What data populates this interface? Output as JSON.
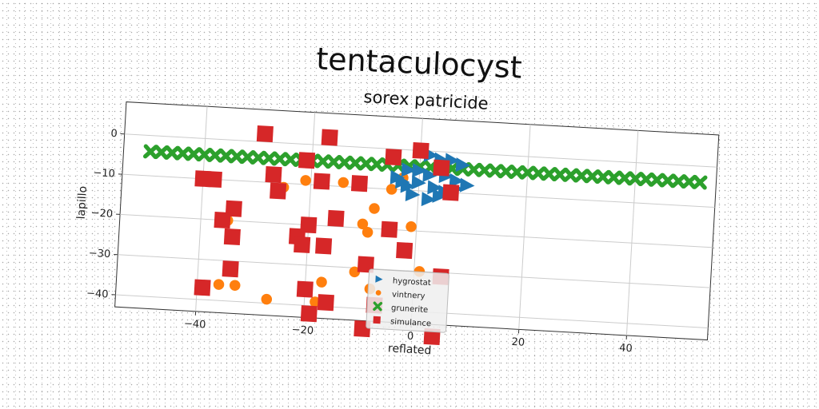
{
  "chart_data": {
    "type": "scatter",
    "title": "tentaculocyst",
    "subtitle": "sorex patricide",
    "xlabel": "reflated",
    "ylabel": "lapillo",
    "xlim": [
      -55,
      55
    ],
    "ylim": [
      -43,
      8
    ],
    "xticks": [
      -40,
      -20,
      0,
      20,
      40
    ],
    "yticks": [
      0,
      -10,
      -20,
      -30,
      -40
    ],
    "grid": true,
    "legend_position": "lower-center",
    "series": [
      {
        "name": "hygrostat",
        "marker": "triangle-right",
        "color": "#1f77b4",
        "points": [
          [
            2,
            -1
          ],
          [
            4,
            -2
          ],
          [
            6,
            -2
          ],
          [
            8,
            -3
          ],
          [
            -2,
            -5
          ],
          [
            0,
            -5
          ],
          [
            2,
            -6
          ],
          [
            5,
            -6
          ],
          [
            7,
            -7
          ],
          [
            9,
            -8
          ],
          [
            -4,
            -7
          ],
          [
            -2,
            -9
          ],
          [
            0,
            -8
          ],
          [
            3,
            -9
          ],
          [
            5,
            -10
          ],
          [
            7,
            -9
          ],
          [
            -1,
            -11
          ],
          [
            2,
            -12
          ],
          [
            4,
            -11
          ],
          [
            -3,
            -8
          ]
        ]
      },
      {
        "name": "vintnery",
        "marker": "circle",
        "color": "#ff7f0e",
        "points": [
          [
            -21,
            -9
          ],
          [
            -14,
            -9
          ],
          [
            -3,
            -7
          ],
          [
            -5,
            -10
          ],
          [
            -25,
            -11
          ],
          [
            -8,
            -15
          ],
          [
            -10,
            -19
          ],
          [
            -9,
            -21
          ],
          [
            -1,
            -19
          ],
          [
            -35,
            -20
          ],
          [
            -11,
            -31
          ],
          [
            -17,
            -34
          ],
          [
            -33,
            -36
          ],
          [
            -36,
            -36
          ],
          [
            -27,
            -39
          ],
          [
            -8,
            -35
          ],
          [
            1,
            -30
          ],
          [
            -18,
            -39
          ]
        ]
      },
      {
        "name": "grunerite",
        "marker": "x",
        "color": "#2ca02c",
        "points": [
          [
            -50,
            -4
          ],
          [
            -48,
            -4
          ],
          [
            -46,
            -4
          ],
          [
            -44,
            -4
          ],
          [
            -42,
            -4
          ],
          [
            -40,
            -4
          ],
          [
            -38,
            -4
          ],
          [
            -36,
            -4
          ],
          [
            -34,
            -4
          ],
          [
            -32,
            -4
          ],
          [
            -30,
            -4
          ],
          [
            -28,
            -4
          ],
          [
            -26,
            -4
          ],
          [
            -24,
            -4
          ],
          [
            -22,
            -4
          ],
          [
            -20,
            -4
          ],
          [
            -18,
            -4
          ],
          [
            -16,
            -4
          ],
          [
            -14,
            -4
          ],
          [
            -12,
            -4
          ],
          [
            -10,
            -4
          ],
          [
            -8,
            -4
          ],
          [
            -6,
            -4
          ],
          [
            -4,
            -4
          ],
          [
            -2,
            -4
          ],
          [
            0,
            -4
          ],
          [
            2,
            -4
          ],
          [
            4,
            -4
          ],
          [
            6,
            -4
          ],
          [
            8,
            -4
          ],
          [
            10,
            -4
          ],
          [
            12,
            -4
          ],
          [
            14,
            -4
          ],
          [
            16,
            -4
          ],
          [
            18,
            -4
          ],
          [
            20,
            -4
          ],
          [
            22,
            -4
          ],
          [
            24,
            -4
          ],
          [
            26,
            -4
          ],
          [
            28,
            -4
          ],
          [
            30,
            -4
          ],
          [
            32,
            -4
          ],
          [
            34,
            -4
          ],
          [
            36,
            -4
          ],
          [
            38,
            -4
          ],
          [
            40,
            -4
          ],
          [
            42,
            -4
          ],
          [
            44,
            -4
          ],
          [
            46,
            -4
          ],
          [
            48,
            -4
          ],
          [
            50,
            -4
          ],
          [
            52,
            -4
          ]
        ]
      },
      {
        "name": "simulance",
        "marker": "square",
        "color": "#d62728",
        "points": [
          [
            -29,
            2
          ],
          [
            -17,
            2
          ],
          [
            0,
            0
          ],
          [
            -5,
            -2
          ],
          [
            -21,
            -4
          ],
          [
            4,
            -4
          ],
          [
            -27,
            -8
          ],
          [
            -18,
            -9
          ],
          [
            -11,
            -9
          ],
          [
            -38,
            -10
          ],
          [
            -40,
            -10
          ],
          [
            -26,
            -12
          ],
          [
            6,
            -10
          ],
          [
            -34,
            -17
          ],
          [
            -15,
            -18
          ],
          [
            -36,
            -20
          ],
          [
            -20,
            -20
          ],
          [
            -5,
            -20
          ],
          [
            -2,
            -25
          ],
          [
            -22,
            -23
          ],
          [
            -21,
            -25
          ],
          [
            -17,
            -25
          ],
          [
            -34,
            -24
          ],
          [
            -9,
            -29
          ],
          [
            5,
            -31
          ],
          [
            -34,
            -32
          ],
          [
            -20,
            -36
          ],
          [
            -39,
            -37
          ],
          [
            -16,
            -39
          ],
          [
            -19,
            -42
          ],
          [
            -7,
            -39
          ],
          [
            -9,
            -45
          ],
          [
            4,
            -46
          ]
        ]
      }
    ]
  }
}
